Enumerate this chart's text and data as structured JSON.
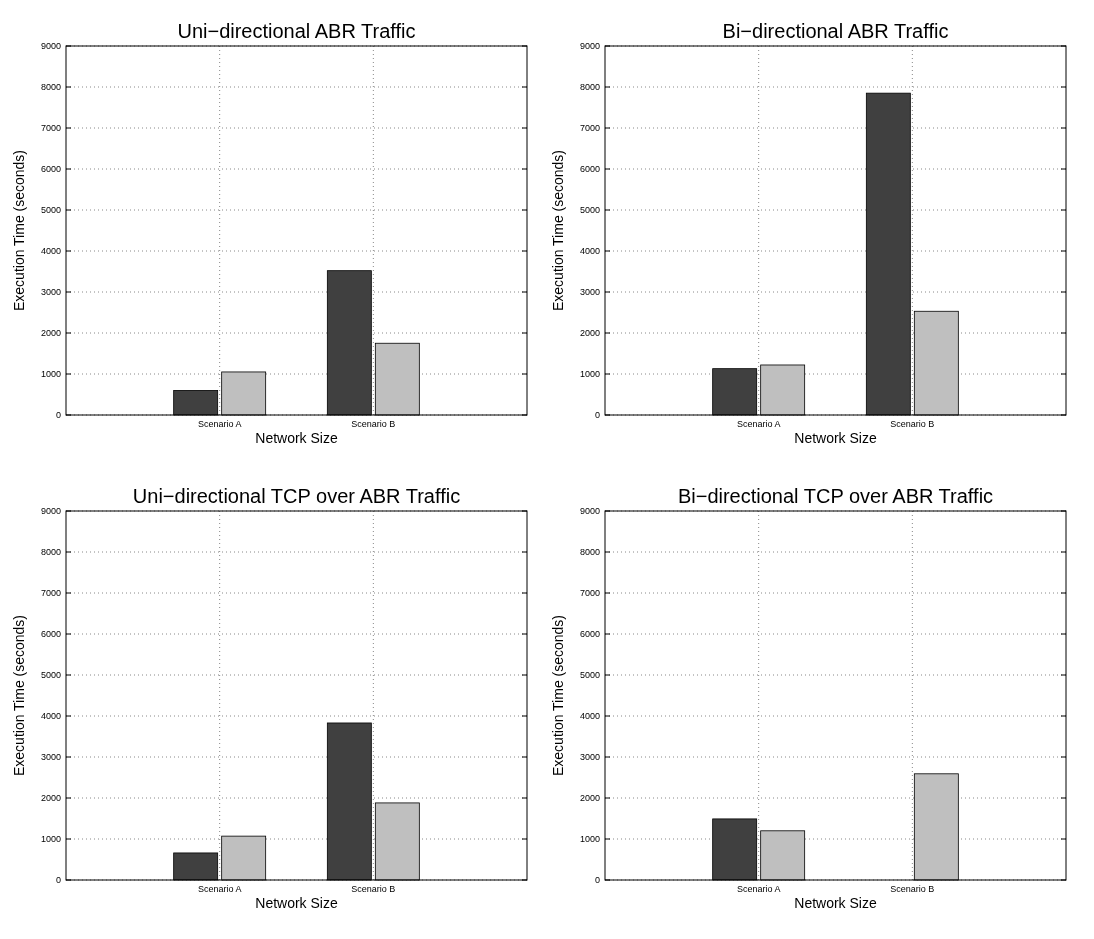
{
  "chart_data": [
    {
      "type": "bar",
      "title": "Uni−directional ABR Traffic",
      "xlabel": "Network Size",
      "ylabel": "Execution Time (seconds)",
      "categories": [
        "Scenario A",
        "Scenario B"
      ],
      "series": [
        {
          "color": "#404040",
          "values": [
            600,
            3520
          ]
        },
        {
          "color": "#bfbfbf",
          "values": [
            1050,
            1750
          ]
        }
      ],
      "ylim": [
        0,
        9000
      ],
      "yticks": [
        0,
        1000,
        2000,
        3000,
        4000,
        5000,
        6000,
        7000,
        8000,
        9000
      ],
      "grid": true
    },
    {
      "type": "bar",
      "title": "Bi−directional ABR Traffic",
      "xlabel": "Network Size",
      "ylabel": "Execution Time (seconds)",
      "categories": [
        "Scenario A",
        "Scenario B"
      ],
      "series": [
        {
          "color": "#404040",
          "values": [
            1130,
            7850
          ]
        },
        {
          "color": "#bfbfbf",
          "values": [
            1220,
            2530
          ]
        }
      ],
      "ylim": [
        0,
        9000
      ],
      "yticks": [
        0,
        1000,
        2000,
        3000,
        4000,
        5000,
        6000,
        7000,
        8000,
        9000
      ],
      "grid": true
    },
    {
      "type": "bar",
      "title": "Uni−directional TCP over ABR Traffic",
      "xlabel": "Network Size",
      "ylabel": "Execution Time (seconds)",
      "categories": [
        "Scenario A",
        "Scenario B"
      ],
      "series": [
        {
          "color": "#404040",
          "values": [
            660,
            3830
          ]
        },
        {
          "color": "#bfbfbf",
          "values": [
            1070,
            1880
          ]
        }
      ],
      "ylim": [
        0,
        9000
      ],
      "yticks": [
        0,
        1000,
        2000,
        3000,
        4000,
        5000,
        6000,
        7000,
        8000,
        9000
      ],
      "grid": true
    },
    {
      "type": "bar",
      "title": "Bi−directional TCP over ABR Traffic",
      "xlabel": "Network Size",
      "ylabel": "Execution Time (seconds)",
      "categories": [
        "Scenario A",
        "Scenario B"
      ],
      "series": [
        {
          "color": "#404040",
          "values": [
            1490,
            null
          ]
        },
        {
          "color": "#bfbfbf",
          "values": [
            1200,
            2590
          ]
        }
      ],
      "ylim": [
        0,
        9000
      ],
      "yticks": [
        0,
        1000,
        2000,
        3000,
        4000,
        5000,
        6000,
        7000,
        8000,
        9000
      ],
      "grid": true
    }
  ]
}
